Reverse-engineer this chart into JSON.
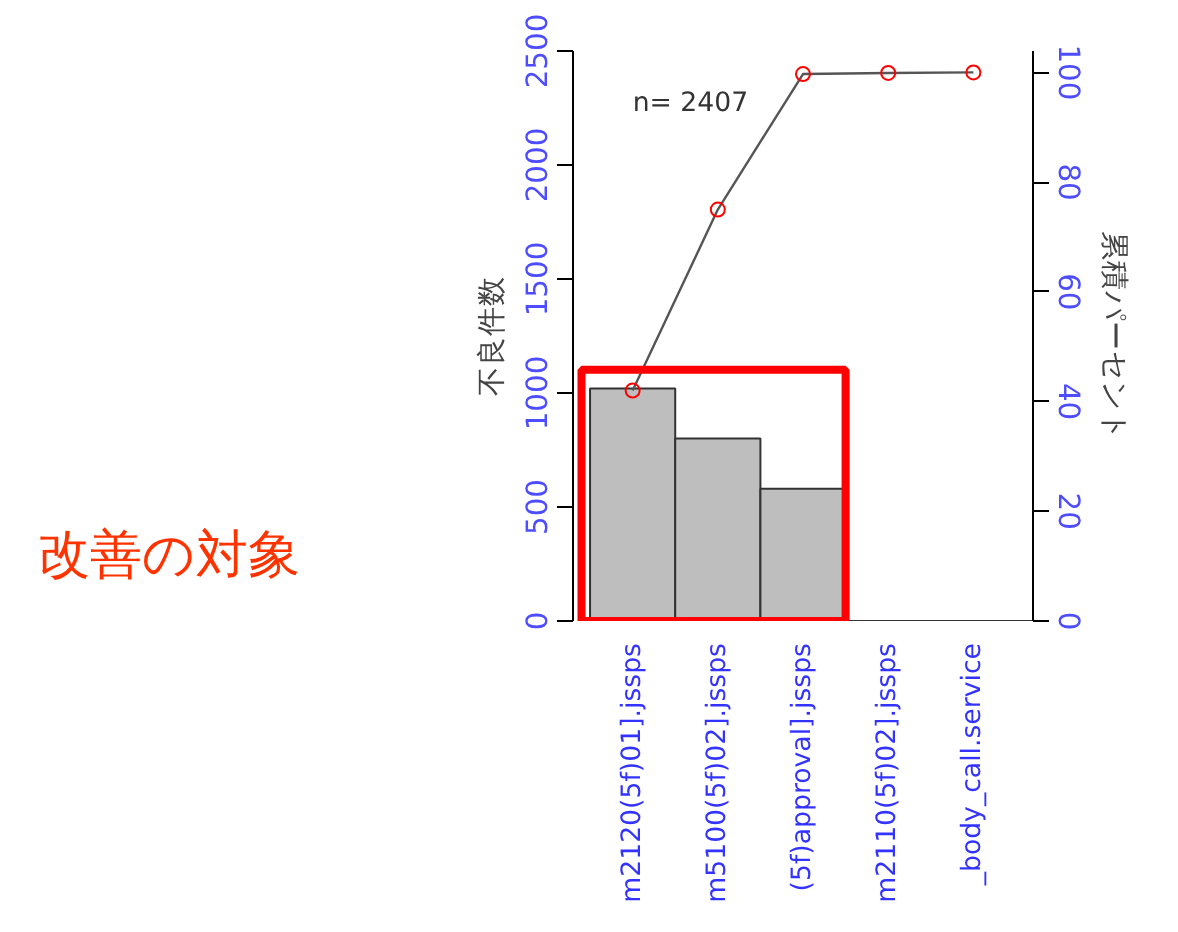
{
  "chart_data": {
    "type": "bar",
    "categories": [
      "m2120(5f)01].jssps",
      "m5100(5f)02].jssps",
      "(5f)approval].jssps",
      "m2110(5f)02].jssps",
      "_body_call.service"
    ],
    "values": [
      1020,
      800,
      580,
      null,
      null
    ],
    "color": "#bebebe",
    "series": [
      {
        "type": "line",
        "axis": "y2",
        "color": "#555555",
        "values": [
          42,
          75,
          99.7,
          99.9,
          100
        ]
      }
    ],
    "ylabel": "不良件数",
    "y2label": "累積パーセント",
    "ylim": [
      0,
      2500
    ],
    "yticks": [
      0,
      500,
      1000,
      1500,
      2000,
      2500
    ],
    "y2lim": [
      0,
      103.9
    ],
    "y2ticks": [
      0,
      20,
      40,
      60,
      80,
      100
    ],
    "annotations": [
      "n= 2407",
      "改善の対象"
    ],
    "marker": "circle",
    "grid": false
  }
}
